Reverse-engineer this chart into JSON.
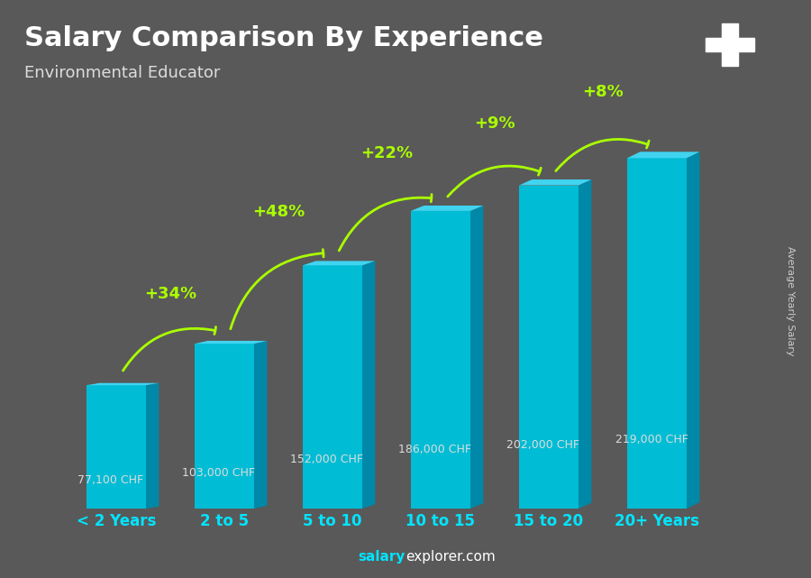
{
  "title": "Salary Comparison By Experience",
  "subtitle": "Environmental Educator",
  "ylabel": "Average Yearly Salary",
  "categories": [
    "< 2 Years",
    "2 to 5",
    "5 to 10",
    "10 to 15",
    "15 to 20",
    "20+ Years"
  ],
  "values": [
    77100,
    103000,
    152000,
    186000,
    202000,
    219000
  ],
  "value_labels": [
    "77,100 CHF",
    "103,000 CHF",
    "152,000 CHF",
    "186,000 CHF",
    "202,000 CHF",
    "219,000 CHF"
  ],
  "pct_changes": [
    "+34%",
    "+48%",
    "+22%",
    "+9%",
    "+8%"
  ],
  "bar_color_face": "#00bcd4",
  "bar_color_dark": "#0088a8",
  "bar_color_top": "#40d4f0",
  "background_header": "#595959",
  "background_chart": "#7a7a7a",
  "title_color": "#ffffff",
  "subtitle_color": "#dddddd",
  "tick_color": "#00e5ff",
  "value_label_color": "#dddddd",
  "pct_color": "#aaff00",
  "ylabel_color": "#cccccc",
  "footer_color": "#00e5ff",
  "footer_salary": "salary",
  "footer_explorer": "explorer.com",
  "ylim": [
    0,
    260000
  ],
  "flag_color": "#e53935",
  "cross_color": "#ffffff"
}
